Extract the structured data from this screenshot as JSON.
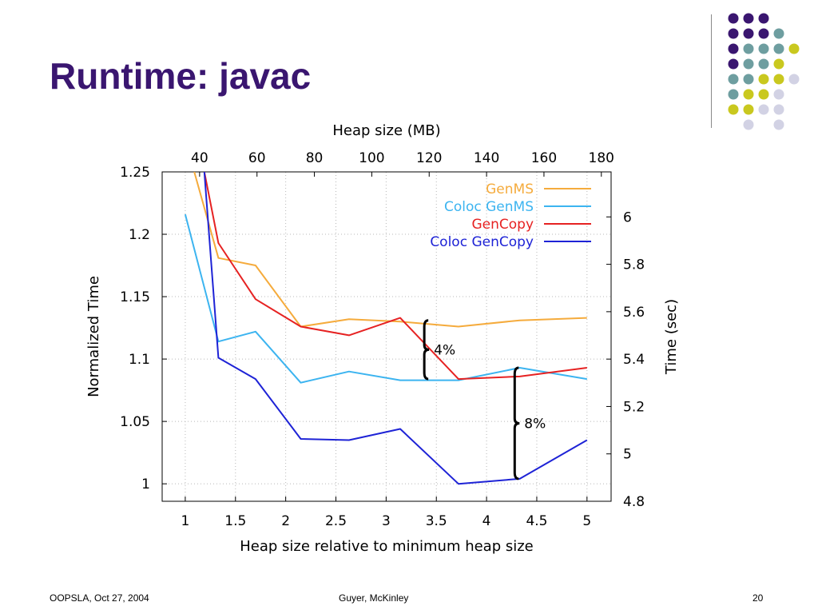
{
  "slide": {
    "title": "Runtime: javac",
    "footer_left": "OOPSLA, Oct 27, 2004",
    "footer_center": "Guyer, McKinley",
    "footer_right": "20"
  },
  "colors": {
    "title": "#3a1670",
    "dot_purple": "#3a1670",
    "dot_teal": "#6e9ea0",
    "dot_yellow": "#c9c81f",
    "dot_lavender": "#d2d2e4"
  },
  "chart_data": {
    "type": "line",
    "xlabel": "Heap size relative to minimum heap size",
    "ylabel": "Normalized Time",
    "x2label": "Heap size (MB)",
    "y2label": "Time (sec)",
    "xlim": [
      0.77,
      5.24
    ],
    "ylim": [
      0.986,
      1.25
    ],
    "y2lim": [
      4.8,
      6.19
    ],
    "x_ticks": [
      "1",
      "1.5",
      "2",
      "2.5",
      "3",
      "3.5",
      "4",
      "4.5",
      "5"
    ],
    "y_ticks": [
      "1",
      "1.05",
      "1.1",
      "1.15",
      "1.2",
      "1.25"
    ],
    "x2_ticks": [
      "40",
      "60",
      "80",
      "100",
      "120",
      "140",
      "160",
      "180"
    ],
    "y2_ticks": [
      "4.8",
      "5",
      "5.2",
      "5.4",
      "5.6",
      "5.8",
      "6"
    ],
    "grid": true,
    "legend_position": "top-right",
    "series": [
      {
        "name": "GenMS",
        "color": "#f5ab3c",
        "points": [
          [
            1.09,
            1.25
          ],
          [
            1.33,
            1.181
          ],
          [
            1.7,
            1.175
          ],
          [
            2.15,
            1.126
          ],
          [
            2.63,
            1.132
          ],
          [
            3.14,
            1.13
          ],
          [
            3.72,
            1.126
          ],
          [
            4.33,
            1.131
          ],
          [
            5.0,
            1.133
          ]
        ]
      },
      {
        "name": "Coloc GenMS",
        "color": "#3cb4f0",
        "points": [
          [
            1.0,
            1.216
          ],
          [
            1.33,
            1.114
          ],
          [
            1.7,
            1.122
          ],
          [
            2.15,
            1.081
          ],
          [
            2.63,
            1.09
          ],
          [
            3.14,
            1.083
          ],
          [
            3.72,
            1.083
          ],
          [
            4.33,
            1.093
          ],
          [
            5.0,
            1.084
          ]
        ]
      },
      {
        "name": "GenCopy",
        "color": "#e62222",
        "points": [
          [
            1.19,
            1.25
          ],
          [
            1.33,
            1.193
          ],
          [
            1.7,
            1.148
          ],
          [
            2.15,
            1.126
          ],
          [
            2.63,
            1.119
          ],
          [
            3.14,
            1.133
          ],
          [
            3.72,
            1.084
          ],
          [
            4.33,
            1.086
          ],
          [
            5.0,
            1.093
          ]
        ]
      },
      {
        "name": "Coloc GenCopy",
        "color": "#1e23d6",
        "points": [
          [
            1.19,
            1.25
          ],
          [
            1.33,
            1.101
          ],
          [
            1.7,
            1.084
          ],
          [
            2.15,
            1.036
          ],
          [
            2.63,
            1.035
          ],
          [
            3.14,
            1.044
          ],
          [
            3.72,
            1.0
          ],
          [
            4.33,
            1.004
          ],
          [
            5.0,
            1.035
          ]
        ]
      }
    ],
    "annotations": [
      {
        "label": "4%",
        "x": 3.38,
        "y_from": 1.131,
        "y_to": 1.084
      },
      {
        "label": "8%",
        "x": 4.28,
        "y_from": 1.093,
        "y_to": 1.004
      }
    ]
  }
}
